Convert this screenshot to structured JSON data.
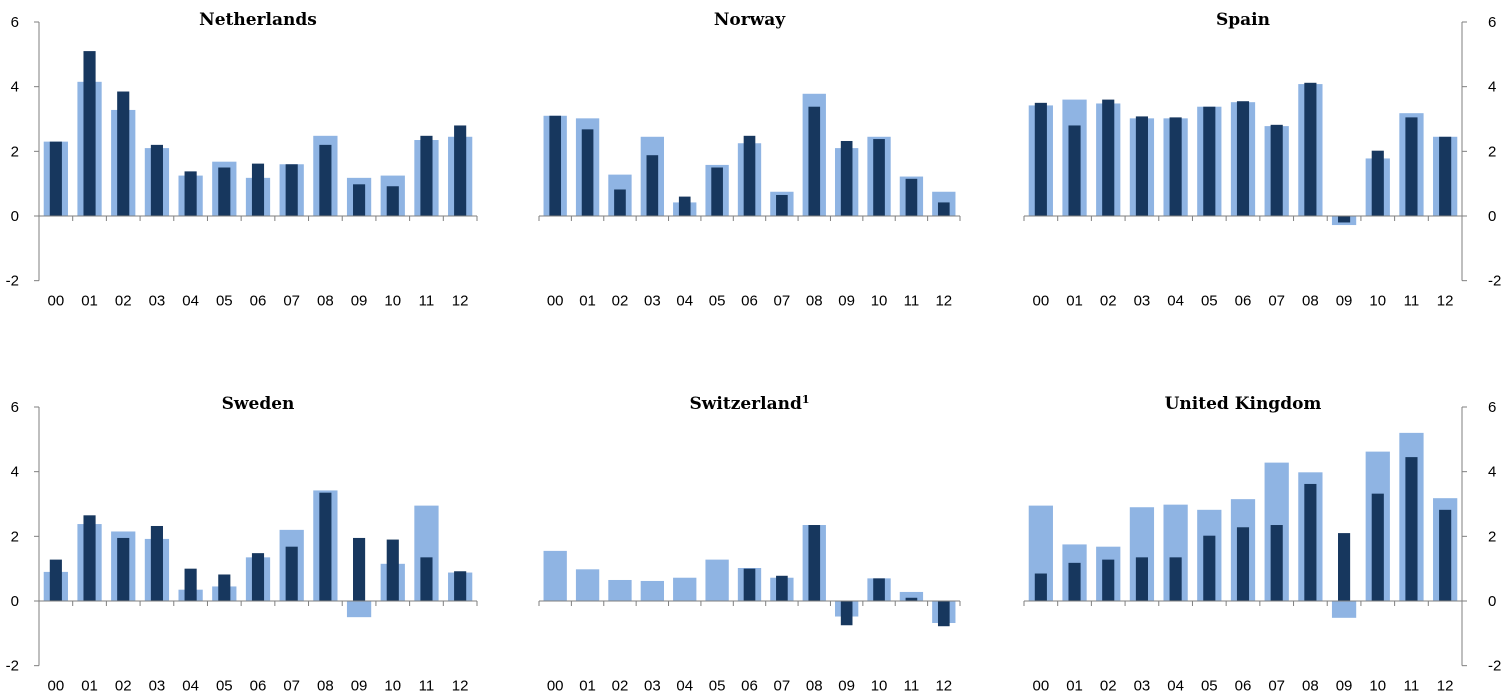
{
  "colors": {
    "series_a": "#8fb4e3",
    "series_b": "#17375e",
    "axis": "#7f7f7f"
  },
  "chart_data": [
    {
      "type": "bar",
      "title": "Netherlands",
      "categories": [
        "00",
        "01",
        "02",
        "03",
        "04",
        "05",
        "06",
        "07",
        "08",
        "09",
        "10",
        "11",
        "12"
      ],
      "series": [
        {
          "values": [
            2.3,
            4.15,
            3.28,
            2.1,
            1.25,
            1.68,
            1.18,
            1.6,
            2.48,
            1.18,
            1.25,
            2.35,
            2.45
          ]
        },
        {
          "values": [
            2.3,
            5.1,
            3.85,
            2.2,
            1.38,
            1.5,
            1.62,
            1.6,
            2.2,
            0.98,
            0.92,
            2.48,
            2.8
          ]
        }
      ],
      "ylim": [
        -2,
        6
      ],
      "yticks": [
        -2,
        0,
        2,
        4,
        6
      ],
      "yaxis_side": "left"
    },
    {
      "type": "bar",
      "title": "Norway",
      "categories": [
        "00",
        "01",
        "02",
        "03",
        "04",
        "05",
        "06",
        "07",
        "08",
        "09",
        "10",
        "11",
        "12"
      ],
      "series": [
        {
          "values": [
            3.1,
            3.02,
            1.28,
            2.45,
            0.42,
            1.58,
            2.25,
            0.75,
            3.78,
            2.1,
            2.45,
            1.22,
            0.75
          ]
        },
        {
          "values": [
            3.1,
            2.68,
            0.82,
            1.88,
            0.6,
            1.5,
            2.48,
            0.65,
            3.38,
            2.32,
            2.38,
            1.15,
            0.42
          ]
        }
      ],
      "ylim": [
        -2,
        6
      ],
      "yticks": [],
      "yaxis_side": "none"
    },
    {
      "type": "bar",
      "title": "Spain",
      "categories": [
        "00",
        "01",
        "02",
        "03",
        "04",
        "05",
        "06",
        "07",
        "08",
        "09",
        "10",
        "11",
        "12"
      ],
      "series": [
        {
          "values": [
            3.42,
            3.6,
            3.48,
            3.02,
            3.02,
            3.38,
            3.52,
            2.78,
            4.08,
            -0.28,
            1.78,
            3.18,
            2.45
          ]
        },
        {
          "values": [
            3.5,
            2.8,
            3.6,
            3.08,
            3.05,
            3.38,
            3.55,
            2.82,
            4.12,
            -0.2,
            2.02,
            3.05,
            2.45
          ]
        }
      ],
      "ylim": [
        -2,
        6
      ],
      "yticks": [
        -2,
        0,
        2,
        4,
        6
      ],
      "yaxis_side": "right"
    },
    {
      "type": "bar",
      "title": "Sweden",
      "categories": [
        "00",
        "01",
        "02",
        "03",
        "04",
        "05",
        "06",
        "07",
        "08",
        "09",
        "10",
        "11",
        "12"
      ],
      "series": [
        {
          "values": [
            0.9,
            2.38,
            2.15,
            1.92,
            0.35,
            0.45,
            1.35,
            2.2,
            3.42,
            -0.5,
            1.15,
            2.95,
            0.88
          ]
        },
        {
          "values": [
            1.28,
            2.65,
            1.95,
            2.32,
            1.0,
            0.82,
            1.48,
            1.68,
            3.35,
            1.95,
            1.9,
            1.35,
            0.92
          ]
        }
      ],
      "ylim": [
        -2,
        6
      ],
      "yticks": [
        -2,
        0,
        2,
        4,
        6
      ],
      "yaxis_side": "left"
    },
    {
      "type": "bar",
      "title": "Switzerland",
      "title_sup": "1",
      "categories": [
        "00",
        "01",
        "02",
        "03",
        "04",
        "05",
        "06",
        "07",
        "08",
        "09",
        "10",
        "11",
        "12"
      ],
      "series": [
        {
          "values": [
            1.55,
            0.98,
            0.65,
            0.62,
            0.72,
            1.28,
            1.02,
            0.72,
            2.35,
            -0.48,
            0.7,
            0.28,
            -0.68
          ]
        },
        {
          "values": [
            null,
            null,
            null,
            null,
            null,
            null,
            1.0,
            0.78,
            2.35,
            -0.75,
            0.7,
            0.1,
            -0.78
          ]
        }
      ],
      "ylim": [
        -2,
        6
      ],
      "yticks": [],
      "yaxis_side": "none"
    },
    {
      "type": "bar",
      "title": "United Kingdom",
      "categories": [
        "00",
        "01",
        "02",
        "03",
        "04",
        "05",
        "06",
        "07",
        "08",
        "09",
        "10",
        "11",
        "12"
      ],
      "series": [
        {
          "values": [
            2.95,
            1.75,
            1.68,
            2.9,
            2.98,
            2.82,
            3.15,
            4.28,
            3.98,
            -0.52,
            4.62,
            5.2,
            3.18
          ]
        },
        {
          "values": [
            0.85,
            1.18,
            1.28,
            1.35,
            1.35,
            2.02,
            2.28,
            2.35,
            3.62,
            2.1,
            3.32,
            4.45,
            2.82
          ]
        }
      ],
      "ylim": [
        -2,
        6
      ],
      "yticks": [
        -2,
        0,
        2,
        4,
        6
      ],
      "yaxis_side": "right"
    }
  ]
}
